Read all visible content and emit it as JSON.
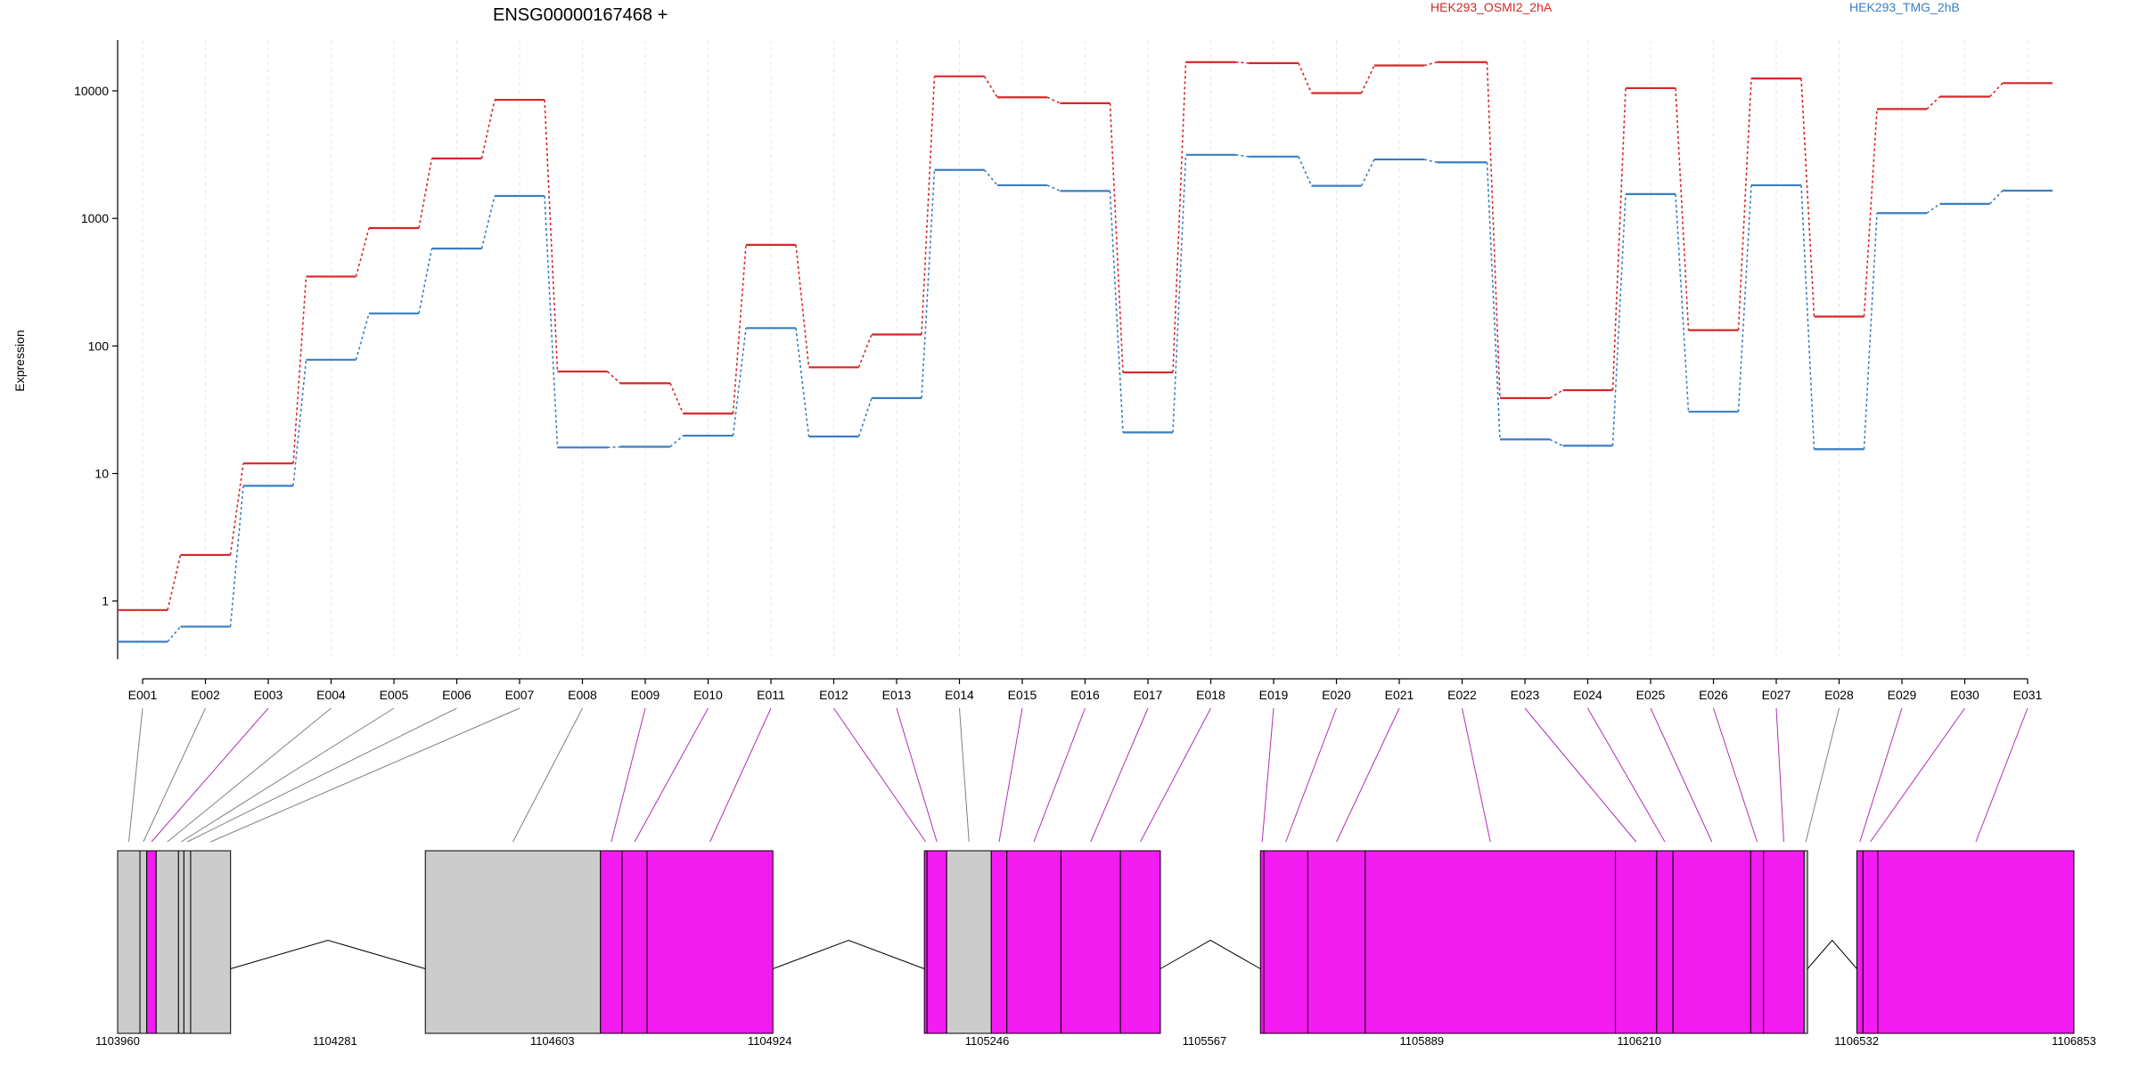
{
  "colors": {
    "series": [
      "#d62728",
      "#3a7fc1"
    ],
    "exon_expressed": "#f21bf0",
    "exon_other": "#cccccc",
    "connector_expressed": "#b030b0",
    "connector_other": "#808080",
    "axis": "#000000",
    "grid": "#e2e6ef"
  },
  "chart_data": {
    "type": "line",
    "title": "ENSG00000167468 +",
    "ylabel": "Expression",
    "yscale": "log",
    "ylim": [
      0.35,
      25000
    ],
    "ytick_values": [
      1,
      10,
      100,
      1000,
      10000
    ],
    "ytick_labels": [
      "1",
      "10",
      "100",
      "1000",
      "10000"
    ],
    "grid": "vertical",
    "legend_position": "top",
    "categories": [
      "E001",
      "E002",
      "E003",
      "E004",
      "E005",
      "E006",
      "E007",
      "E008",
      "E009",
      "E010",
      "E011",
      "E012",
      "E013",
      "E014",
      "E015",
      "E016",
      "E017",
      "E018",
      "E019",
      "E020",
      "E021",
      "E022",
      "E023",
      "E024",
      "E025",
      "E026",
      "E027",
      "E028",
      "E029",
      "E030",
      "E031"
    ],
    "series": [
      {
        "name": "HEK293_OSMI2_2hA",
        "values": [
          0.85,
          2.3,
          12,
          350,
          840,
          2950,
          8500,
          63,
          51,
          29.5,
          620,
          68,
          123,
          13000,
          8900,
          8000,
          62,
          16800,
          16500,
          9600,
          15800,
          16800,
          39,
          45,
          10500,
          133,
          12500,
          170,
          7200,
          9000,
          11500
        ]
      },
      {
        "name": "HEK293_TMG_2hB",
        "values": [
          0.48,
          0.63,
          8,
          78,
          180,
          580,
          1500,
          16,
          16.2,
          19.8,
          138,
          19.5,
          39,
          2400,
          1820,
          1640,
          21,
          3150,
          3050,
          1800,
          2900,
          2750,
          18.5,
          16.5,
          1550,
          30.5,
          1820,
          15.5,
          1100,
          1300,
          1650
        ]
      }
    ],
    "gene_model": {
      "coordinate_labels": [
        "1103960",
        "1104281",
        "1104603",
        "1104924",
        "1105246",
        "1105567",
        "1105889",
        "1106210",
        "1106532",
        "1106853"
      ],
      "coordinate_range": [
        1103960,
        1106853
      ],
      "bins": [
        {
          "id": "E001",
          "start": 1103960,
          "end": 1103993,
          "expressed": false
        },
        {
          "id": "E002",
          "start": 1103993,
          "end": 1104003,
          "expressed": false
        },
        {
          "id": "E003",
          "start": 1104003,
          "end": 1104017,
          "expressed": true
        },
        {
          "id": "E004",
          "start": 1104017,
          "end": 1104050,
          "expressed": false
        },
        {
          "id": "E005",
          "start": 1104050,
          "end": 1104058,
          "expressed": false
        },
        {
          "id": "E006",
          "start": 1104058,
          "end": 1104068,
          "expressed": false
        },
        {
          "id": "E007",
          "start": 1104068,
          "end": 1104127,
          "expressed": false
        },
        {
          "id": "E008",
          "start": 1104415,
          "end": 1104674,
          "expressed": false
        },
        {
          "id": "E009",
          "start": 1104674,
          "end": 1104706,
          "expressed": true
        },
        {
          "id": "E010",
          "start": 1104706,
          "end": 1104743,
          "expressed": true
        },
        {
          "id": "E011",
          "start": 1104743,
          "end": 1104929,
          "expressed": true
        },
        {
          "id": "E012",
          "start": 1105153,
          "end": 1105157,
          "expressed": true
        },
        {
          "id": "E013",
          "start": 1105157,
          "end": 1105186,
          "expressed": true
        },
        {
          "id": "E014",
          "start": 1105186,
          "end": 1105252,
          "expressed": false
        },
        {
          "id": "E015",
          "start": 1105252,
          "end": 1105275,
          "expressed": true
        },
        {
          "id": "E016",
          "start": 1105275,
          "end": 1105355,
          "expressed": true
        },
        {
          "id": "E017",
          "start": 1105355,
          "end": 1105443,
          "expressed": true
        },
        {
          "id": "E018",
          "start": 1105443,
          "end": 1105502,
          "expressed": true
        },
        {
          "id": "E019",
          "start": 1105650,
          "end": 1105655,
          "expressed": true
        },
        {
          "id": "E020",
          "start": 1105655,
          "end": 1105720,
          "expressed": true
        },
        {
          "id": "E021",
          "start": 1105720,
          "end": 1105805,
          "expressed": true
        },
        {
          "id": "E022",
          "start": 1105805,
          "end": 1106175,
          "expressed": true
        },
        {
          "id": "E023",
          "start": 1106175,
          "end": 1106236,
          "expressed": true
        },
        {
          "id": "E024",
          "start": 1106236,
          "end": 1106260,
          "expressed": true
        },
        {
          "id": "E025",
          "start": 1106260,
          "end": 1106375,
          "expressed": true
        },
        {
          "id": "E026",
          "start": 1106375,
          "end": 1106394,
          "expressed": true
        },
        {
          "id": "E027",
          "start": 1106394,
          "end": 1106454,
          "expressed": true
        },
        {
          "id": "E028",
          "start": 1106454,
          "end": 1106459,
          "expressed": false
        },
        {
          "id": "E029",
          "start": 1106532,
          "end": 1106541,
          "expressed": true
        },
        {
          "id": "E030",
          "start": 1106541,
          "end": 1106563,
          "expressed": true
        },
        {
          "id": "E031",
          "start": 1106563,
          "end": 1106853,
          "expressed": true
        }
      ],
      "introns": [
        {
          "start": 1104127,
          "end": 1104415
        },
        {
          "start": 1104929,
          "end": 1105153
        },
        {
          "start": 1105502,
          "end": 1105650
        },
        {
          "start": 1106375,
          "end": 1106375
        },
        {
          "start": 1106459,
          "end": 1106532
        }
      ]
    }
  }
}
